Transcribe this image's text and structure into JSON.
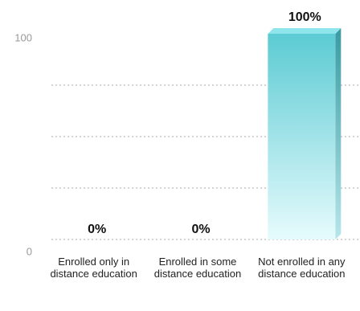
{
  "chart_data": {
    "type": "bar",
    "categories": [
      "Enrolled only in distance education",
      "Enrolled in some distance education",
      "Not enrolled in any distance education"
    ],
    "values": [
      0,
      0,
      100
    ],
    "value_labels": [
      "0%",
      "0%",
      "100%"
    ],
    "color": "#5ccbd3",
    "ylim": [
      0,
      100
    ],
    "yticks": [
      0,
      100
    ],
    "grid_lines": [
      0,
      25,
      50,
      75
    ],
    "grid": true
  }
}
